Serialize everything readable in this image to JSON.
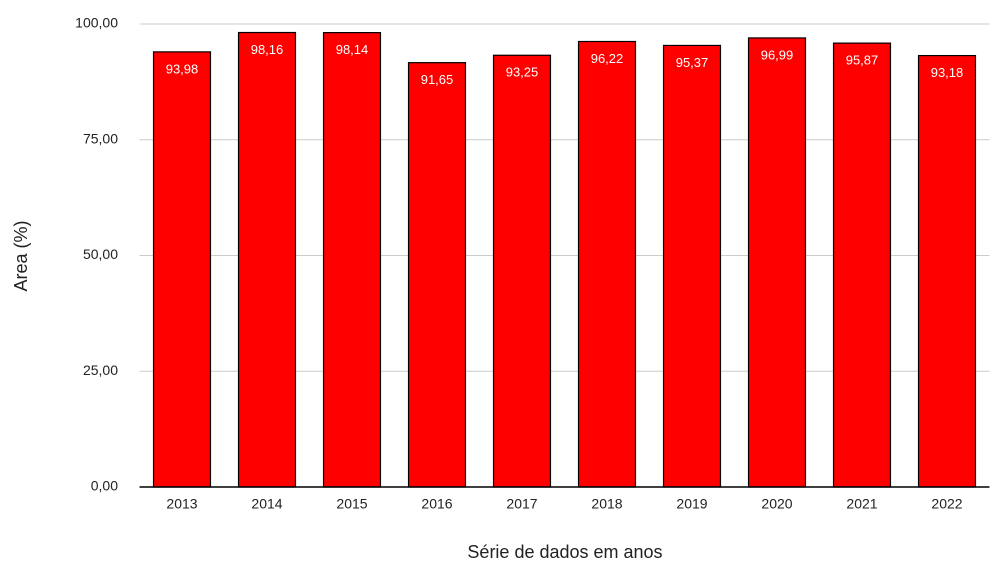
{
  "chart_data": {
    "type": "bar",
    "xlabel": "Série de dados em anos",
    "ylabel": "Area (%)",
    "categories": [
      "2013",
      "2014",
      "2015",
      "2016",
      "2017",
      "2018",
      "2019",
      "2020",
      "2021",
      "2022"
    ],
    "values": [
      93.98,
      98.16,
      98.14,
      91.65,
      93.25,
      96.22,
      95.37,
      96.99,
      95.87,
      93.18
    ],
    "value_labels": [
      "93,98",
      "98,16",
      "98,14",
      "91,65",
      "93,25",
      "96,22",
      "95,37",
      "96,99",
      "95,87",
      "93,18"
    ],
    "color": "#ff0000",
    "ylim": [
      0,
      100
    ],
    "yticks": [
      {
        "value": 0,
        "label": "0,00"
      },
      {
        "value": 25,
        "label": "25,00"
      },
      {
        "value": 50,
        "label": "50,00"
      },
      {
        "value": 75,
        "label": "75,00"
      },
      {
        "value": 100,
        "label": "100,00"
      }
    ],
    "grid": true
  }
}
